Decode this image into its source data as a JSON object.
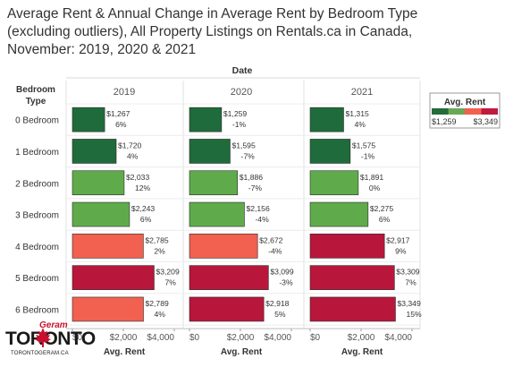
{
  "title_lines": [
    "Average Rent & Annual Change in Average Rent by Bedroom Type",
    "(excluding outliers), All Property Listings on Rentals.ca in Canada,",
    "November: 2019, 2020 & 2021"
  ],
  "watermark": {
    "line1": "Geram",
    "line2": "TORONTO",
    "line3": "TORONTOGERAM.CA"
  },
  "colors": {
    "dark_green": "#1f6b3b",
    "light_green": "#5fab4b",
    "salmon": "#f2604f",
    "crimson": "#b8163b",
    "legend_dark_green": "#256b3a",
    "legend_light_green": "#6aa857",
    "legend_salmon": "#f2604f",
    "legend_crimson": "#c01a3e"
  },
  "chart_data": {
    "type": "bar",
    "orientation": "horizontal",
    "column_header_title": "Date",
    "row_header_title": [
      "Bedroom",
      "Type"
    ],
    "xlabel": "Avg. Rent",
    "xlim": [
      0,
      4000
    ],
    "x_ticks": [
      "$0",
      "$2,000",
      "$4,000"
    ],
    "categories": [
      "0 Bedroom",
      "1 Bedroom",
      "2 Bedroom",
      "3 Bedroom",
      "4 Bedroom",
      "5 Bedroom",
      "6 Bedroom"
    ],
    "panels": [
      {
        "year": "2019",
        "values": [
          1267,
          1720,
          2033,
          2243,
          2785,
          3209,
          2789
        ],
        "value_labels": [
          "$1,267",
          "$1,720",
          "$2,033",
          "$2,243",
          "$2,785",
          "$3,209",
          "$2,789"
        ],
        "change_labels": [
          "6%",
          "4%",
          "12%",
          "6%",
          "2%",
          "7%",
          "4%"
        ],
        "color_keys": [
          "dark_green",
          "dark_green",
          "light_green",
          "light_green",
          "salmon",
          "crimson",
          "salmon"
        ]
      },
      {
        "year": "2020",
        "values": [
          1259,
          1595,
          1886,
          2156,
          2672,
          3099,
          2918
        ],
        "value_labels": [
          "$1,259",
          "$1,595",
          "$1,886",
          "$2,156",
          "$2,672",
          "$3,099",
          "$2,918"
        ],
        "change_labels": [
          "-1%",
          "-7%",
          "-7%",
          "-4%",
          "-4%",
          "-3%",
          "5%"
        ],
        "color_keys": [
          "dark_green",
          "dark_green",
          "light_green",
          "light_green",
          "salmon",
          "crimson",
          "crimson"
        ]
      },
      {
        "year": "2021",
        "values": [
          1315,
          1575,
          1891,
          2275,
          2917,
          3309,
          3349
        ],
        "value_labels": [
          "$1,315",
          "$1,575",
          "$1,891",
          "$2,275",
          "$2,917",
          "$3,309",
          "$3,349"
        ],
        "change_labels": [
          "4%",
          "-1%",
          "0%",
          "6%",
          "9%",
          "7%",
          "15%"
        ],
        "color_keys": [
          "dark_green",
          "dark_green",
          "light_green",
          "light_green",
          "crimson",
          "crimson",
          "crimson"
        ]
      }
    ],
    "legend": {
      "title": "Avg. Rent",
      "min_label": "$1,259",
      "max_label": "$3,349",
      "placement": "right"
    }
  }
}
